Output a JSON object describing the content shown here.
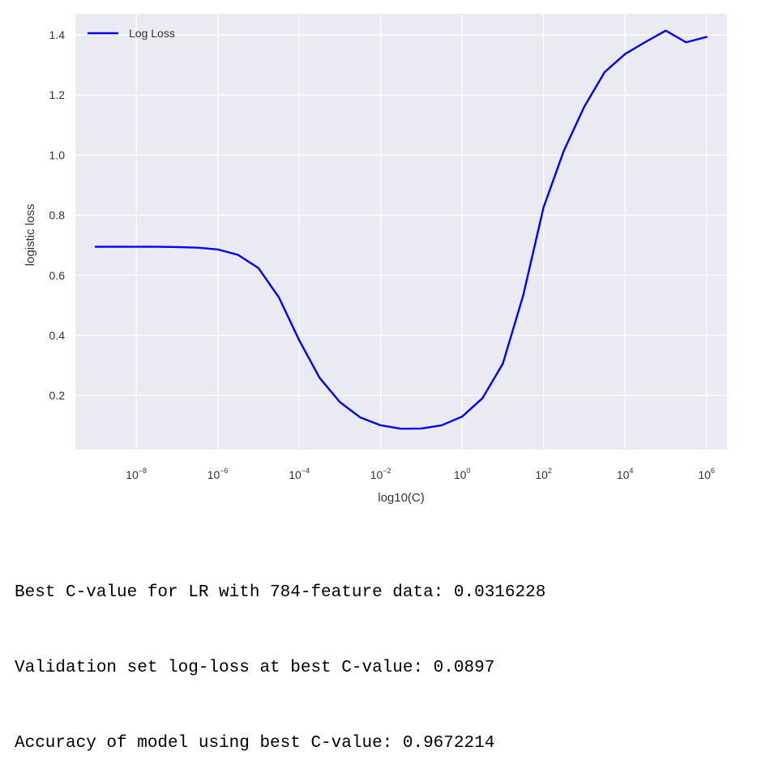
{
  "chart_data": {
    "type": "line",
    "title": "",
    "xlabel": "log10(C)",
    "ylabel": "logistic loss",
    "x_scale": "log",
    "xlim": [
      3.2e-10,
      3200000.0
    ],
    "ylim": [
      0.02,
      1.47
    ],
    "x_ticks": [
      {
        "base": "10",
        "exp": "−8",
        "value": 1e-08
      },
      {
        "base": "10",
        "exp": "−6",
        "value": 1e-06
      },
      {
        "base": "10",
        "exp": "−4",
        "value": 0.0001
      },
      {
        "base": "10",
        "exp": "−2",
        "value": 0.01
      },
      {
        "base": "10",
        "exp": "0",
        "value": 1
      },
      {
        "base": "10",
        "exp": "2",
        "value": 100
      },
      {
        "base": "10",
        "exp": "4",
        "value": 10000
      },
      {
        "base": "10",
        "exp": "6",
        "value": 1000000
      }
    ],
    "y_ticks": [
      {
        "label": "0.2",
        "value": 0.2
      },
      {
        "label": "0.4",
        "value": 0.4
      },
      {
        "label": "0.6",
        "value": 0.6
      },
      {
        "label": "0.8",
        "value": 0.8
      },
      {
        "label": "1.0",
        "value": 1.0
      },
      {
        "label": "1.2",
        "value": 1.2
      },
      {
        "label": "1.4",
        "value": 1.4
      }
    ],
    "grid": true,
    "legend_position": "top-left",
    "series": [
      {
        "name": "Log Loss",
        "color": "#0000ff",
        "x": [
          1e-09,
          3.16e-09,
          1e-08,
          3.16e-08,
          1e-07,
          3.16e-07,
          1e-06,
          3.16e-06,
          1e-05,
          3.16e-05,
          0.0001,
          0.000316,
          0.001,
          0.00316,
          0.01,
          0.0316,
          0.1,
          0.316,
          1,
          3.16,
          10,
          31.6,
          100,
          316,
          1000,
          3160,
          10000,
          31600,
          100000,
          316000,
          1000000
        ],
        "y": [
          0.695,
          0.695,
          0.695,
          0.695,
          0.694,
          0.692,
          0.686,
          0.668,
          0.624,
          0.527,
          0.384,
          0.259,
          0.178,
          0.127,
          0.101,
          0.0897,
          0.0902,
          0.101,
          0.13,
          0.191,
          0.306,
          0.533,
          0.826,
          1.015,
          1.161,
          1.276,
          1.336,
          1.376,
          1.414,
          1.375,
          1.393
        ]
      }
    ]
  },
  "output_lines": [
    "Best C-value for LR with 784-feature data: 0.0316228",
    "Validation set log-loss at best C-value: 0.0897",
    "Accuracy of model using best C-value: 0.9672214"
  ]
}
